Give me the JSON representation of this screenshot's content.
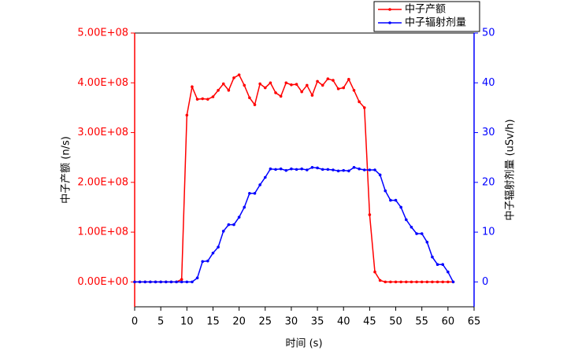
{
  "chart_data": {
    "type": "line",
    "x_label": "时间 (s)",
    "y_label": "中子产额 (n/s)",
    "y2_label": "中子辐射剂量 (uSv/h)",
    "x": [
      0,
      1,
      2,
      3,
      4,
      5,
      6,
      7,
      8,
      9,
      10,
      11,
      12,
      13,
      14,
      15,
      16,
      17,
      18,
      19,
      20,
      21,
      22,
      23,
      24,
      25,
      26,
      27,
      28,
      29,
      30,
      31,
      32,
      33,
      34,
      35,
      36,
      37,
      38,
      39,
      40,
      41,
      42,
      43,
      44,
      45,
      46,
      47,
      48,
      49,
      50,
      51,
      52,
      53,
      54,
      55,
      56,
      57,
      58,
      59,
      60,
      61
    ],
    "series": [
      {
        "name": "中子产额",
        "color": "#ff0000",
        "axis": "y",
        "values": [
          0,
          0,
          0,
          0,
          0,
          0,
          0,
          0,
          0,
          5000000,
          335000000,
          392000000,
          367000000,
          368000000,
          367000000,
          372000000,
          385000000,
          398000000,
          385000000,
          410000000,
          416000000,
          395000000,
          370000000,
          356000000,
          398000000,
          390000000,
          400000000,
          380000000,
          373000000,
          400000000,
          396000000,
          397000000,
          382000000,
          395000000,
          375000000,
          403000000,
          395000000,
          408000000,
          405000000,
          388000000,
          390000000,
          407000000,
          385000000,
          362000000,
          350000000,
          135000000,
          20000000,
          3000000,
          0,
          0,
          0,
          0,
          0,
          0,
          0,
          0,
          0,
          0,
          0,
          0,
          0,
          0
        ]
      },
      {
        "name": "中子辐射剂量",
        "color": "#0000ff",
        "axis": "y2",
        "values": [
          0,
          0,
          0,
          0,
          0,
          0,
          0,
          0,
          0,
          0,
          0,
          0,
          0.8,
          4.1,
          4.2,
          5.8,
          7.0,
          10.2,
          11.5,
          11.5,
          13,
          15,
          17.8,
          17.8,
          19.5,
          21,
          22.7,
          22.6,
          22.7,
          22.4,
          22.7,
          22.6,
          22.7,
          22.5,
          23,
          22.9,
          22.6,
          22.6,
          22.5,
          22.3,
          22.4,
          22.3,
          23,
          22.7,
          22.5,
          22.5,
          22.5,
          21.5,
          18.3,
          16.4,
          16.4,
          15,
          12.5,
          11,
          9.7,
          9.7,
          8,
          5,
          3.5,
          3.5,
          2,
          0
        ]
      }
    ],
    "xlim": [
      0,
      65
    ],
    "xticks": [
      0,
      5,
      10,
      15,
      20,
      25,
      30,
      35,
      40,
      45,
      50,
      55,
      60,
      65
    ],
    "ylim": [
      -50000000,
      500000000
    ],
    "yticks": [
      {
        "value": 0,
        "label": "0.00E+00"
      },
      {
        "value": 100000000,
        "label": "1.00E+08"
      },
      {
        "value": 200000000,
        "label": "2.00E+08"
      },
      {
        "value": 300000000,
        "label": "3.00E+08"
      },
      {
        "value": 400000000,
        "label": "4.00E+08"
      },
      {
        "value": 500000000,
        "label": "5.00E+08"
      }
    ],
    "y2lim": [
      -5,
      50
    ],
    "y2ticks": [
      0,
      10,
      20,
      30,
      40,
      50
    ],
    "legend": "upper right"
  }
}
